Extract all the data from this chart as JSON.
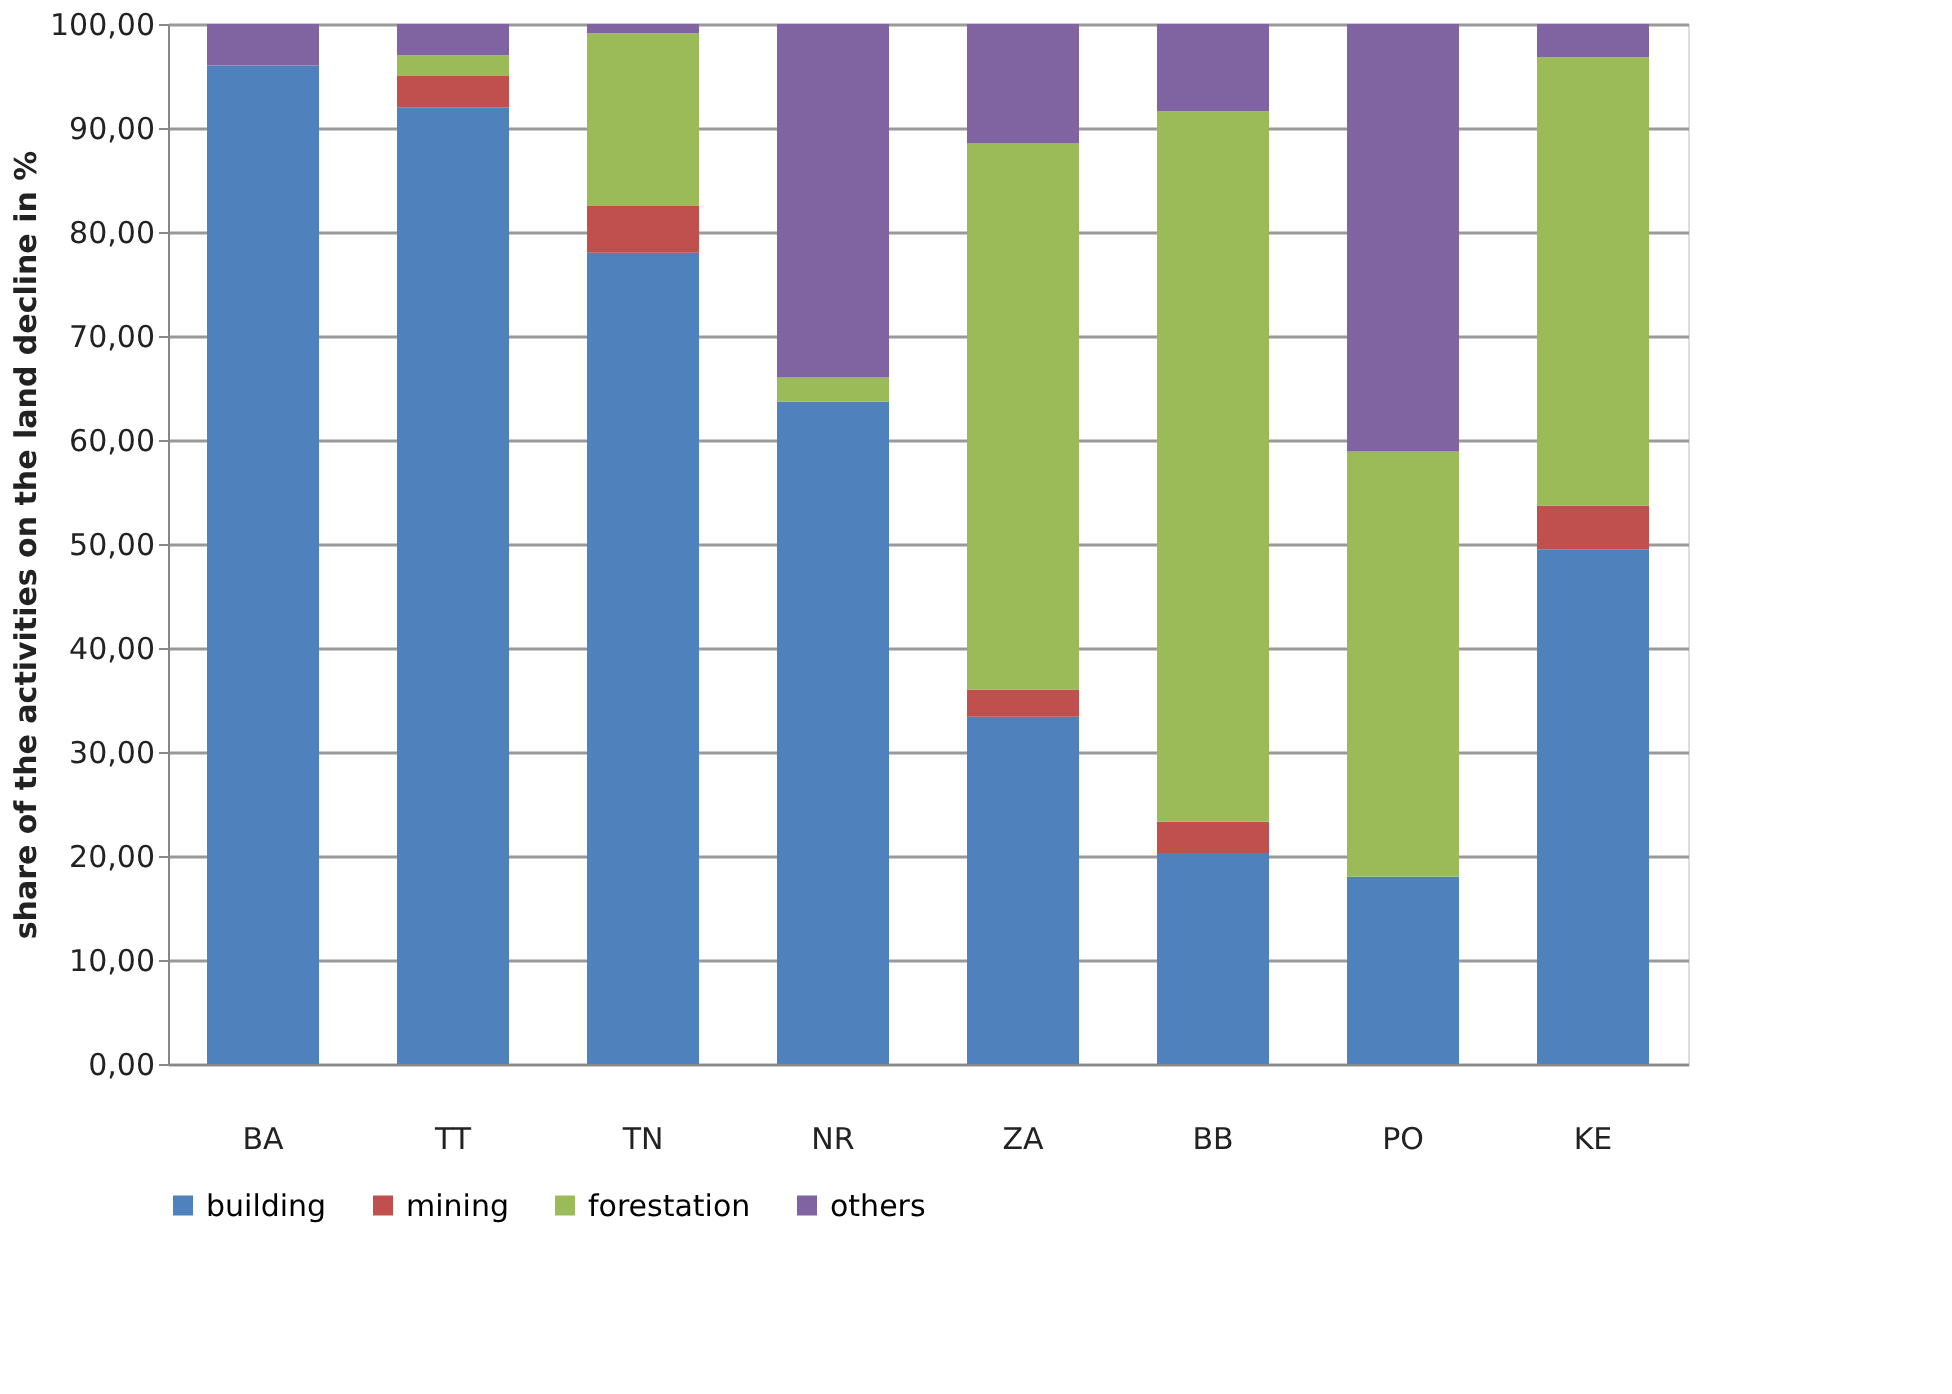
{
  "chart_data": {
    "type": "bar",
    "stacked": true,
    "ylabel": "share of the activities on the land decline in %",
    "categories": [
      "BA",
      "TT",
      "TN",
      "NR",
      "ZA",
      "BB",
      "PO",
      "KE"
    ],
    "series": [
      {
        "name": "building",
        "color": "#4f81bd",
        "values": [
          96.0,
          92.0,
          78.0,
          63.7,
          33.4,
          20.3,
          18.0,
          49.5
        ]
      },
      {
        "name": "mining",
        "color": "#c0504d",
        "values": [
          0,
          3.0,
          4.5,
          0,
          2.6,
          3.0,
          0,
          4.2
        ]
      },
      {
        "name": "forestation",
        "color": "#9bbb59",
        "values": [
          0,
          2.0,
          16.6,
          2.3,
          52.5,
          68.3,
          40.9,
          43.1
        ]
      },
      {
        "name": "others",
        "color": "#8064a2",
        "values": [
          4.0,
          3.0,
          0.9,
          34.0,
          11.5,
          8.4,
          41.1,
          3.2
        ]
      }
    ],
    "ylim": [
      0,
      100
    ],
    "yticks": [
      {
        "value": 0,
        "label": "0,00"
      },
      {
        "value": 10,
        "label": "10,00"
      },
      {
        "value": 20,
        "label": "20,00"
      },
      {
        "value": 30,
        "label": "30,00"
      },
      {
        "value": 40,
        "label": "40,00"
      },
      {
        "value": 50,
        "label": "50,00"
      },
      {
        "value": 60,
        "label": "60,00"
      },
      {
        "value": 70,
        "label": "70,00"
      },
      {
        "value": 80,
        "label": "80,00"
      },
      {
        "value": 90,
        "label": "90,00"
      },
      {
        "value": 100,
        "label": "100,00"
      }
    ],
    "grid": "y",
    "legend": "bottom"
  }
}
